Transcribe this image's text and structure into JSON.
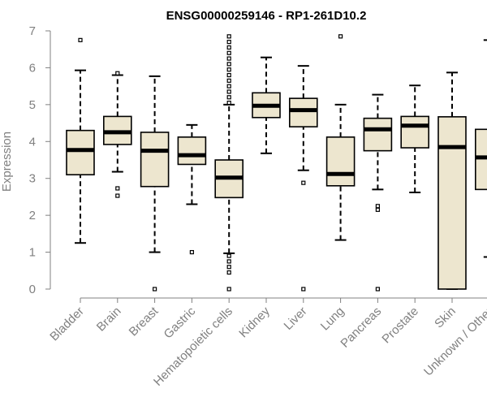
{
  "chart_data": {
    "type": "boxplot",
    "title": "ENSG00000259146 - RP1-261D10.2",
    "xlabel": "",
    "ylabel": "Expression",
    "ylim": [
      0,
      7
    ],
    "yticks": [
      0,
      1,
      2,
      3,
      4,
      5,
      6,
      7
    ],
    "colors": {
      "box_fill": "#ede6cf",
      "box_stroke": "#000000",
      "axis": "#808080",
      "text": "#808080"
    },
    "categories": [
      "Bladder",
      "Brain",
      "Breast",
      "Gastric",
      "Hematopoietic cells",
      "Kidney",
      "Liver",
      "Lung",
      "Pancreas",
      "Prostate",
      "Skin",
      "Unknown / Other"
    ],
    "boxes": [
      {
        "name": "Bladder",
        "whisker_low": 1.25,
        "q1": 3.1,
        "median": 3.77,
        "q3": 4.3,
        "whisker_high": 5.93,
        "outliers": [
          6.75
        ]
      },
      {
        "name": "Brain",
        "whisker_low": 3.18,
        "q1": 3.92,
        "median": 4.25,
        "q3": 4.68,
        "whisker_high": 5.8,
        "outliers": [
          2.73,
          2.53,
          5.85
        ]
      },
      {
        "name": "Breast",
        "whisker_low": 1.0,
        "q1": 2.78,
        "median": 3.75,
        "q3": 4.25,
        "whisker_high": 5.77,
        "outliers": [
          0
        ]
      },
      {
        "name": "Gastric",
        "whisker_low": 2.3,
        "q1": 3.38,
        "median": 3.63,
        "q3": 4.12,
        "whisker_high": 4.45,
        "outliers": [
          1.0
        ]
      },
      {
        "name": "Hematopoietic cells",
        "whisker_low": 0.97,
        "q1": 2.48,
        "median": 3.02,
        "q3": 3.5,
        "whisker_high": 5.0,
        "outliers": [
          0,
          0.45,
          0.6,
          0.75,
          0.9,
          5.05,
          5.2,
          5.35,
          5.5,
          5.65,
          5.8,
          5.95,
          6.1,
          6.25,
          6.4,
          6.55,
          6.7,
          6.85
        ]
      },
      {
        "name": "Kidney",
        "whisker_low": 3.68,
        "q1": 4.65,
        "median": 4.97,
        "q3": 5.32,
        "whisker_high": 6.28,
        "outliers": []
      },
      {
        "name": "Liver",
        "whisker_low": 3.22,
        "q1": 4.4,
        "median": 4.85,
        "q3": 5.17,
        "whisker_high": 6.05,
        "outliers": [
          2.88,
          0
        ]
      },
      {
        "name": "Lung",
        "whisker_low": 1.33,
        "q1": 2.8,
        "median": 3.12,
        "q3": 4.12,
        "whisker_high": 5.0,
        "outliers": [
          6.85
        ]
      },
      {
        "name": "Pancreas",
        "whisker_low": 2.7,
        "q1": 3.75,
        "median": 4.33,
        "q3": 4.63,
        "whisker_high": 5.27,
        "outliers": [
          2.25,
          2.15,
          0
        ]
      },
      {
        "name": "Prostate",
        "whisker_low": 2.62,
        "q1": 3.83,
        "median": 4.43,
        "q3": 4.68,
        "whisker_high": 5.52,
        "outliers": []
      },
      {
        "name": "Skin",
        "whisker_low": 0,
        "q1": 0,
        "median": 3.85,
        "q3": 4.67,
        "whisker_high": 5.87,
        "outliers": []
      },
      {
        "name": "Unknown / Other",
        "whisker_low": 0.87,
        "q1": 2.7,
        "median": 3.57,
        "q3": 4.33,
        "whisker_high": 6.75,
        "outliers": [
          0
        ]
      }
    ]
  }
}
